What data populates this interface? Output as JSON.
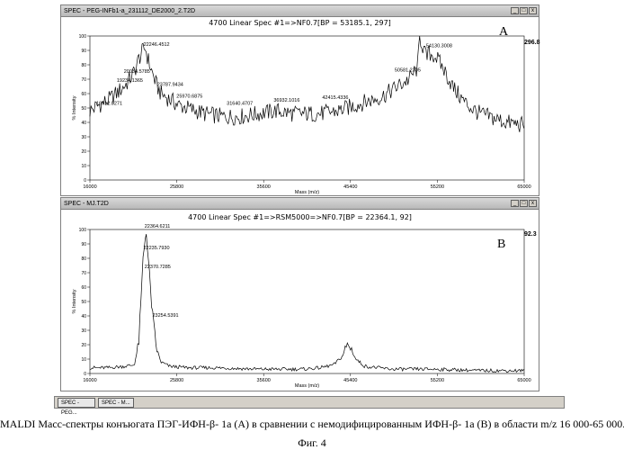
{
  "windowA": {
    "title": "SPEC - PEG-INFb1-a_231112_DE2000_2.T2D",
    "spec_title": "4700 Linear Spec #1=>NF0.7[BP = 53185.1, 297]",
    "letter": "A",
    "bp_value": "296.8"
  },
  "windowB": {
    "title": "SPEC - MJ.T2D",
    "spec_title": "4700 Linear Spec #1=>RSM5000=>NF0.7[BP = 22364.1, 92]",
    "letter": "B",
    "bp_value": "92.3"
  },
  "window_buttons": [
    "_",
    "□",
    "x"
  ],
  "taskbar": {
    "tabs": [
      "SPEC - PEG...",
      "SPEC - M..."
    ]
  },
  "caption": "MALDI Масс-спектры конъюгата ПЭГ-ИФН-β- 1а (А) в сравнении с немодифицированным ИФН-β- 1а (В) в области m/z 16 000-65 000.",
  "figure_label": "Фиг. 4",
  "chart_data": [
    {
      "type": "line",
      "panel": "A",
      "xlabel": "Mass (m/z)",
      "ylabel": "% Intensity",
      "xlim": [
        16000,
        65000
      ],
      "ylim": [
        0,
        100
      ],
      "xticks": [
        16000,
        25800,
        35600,
        45400,
        55200,
        65000
      ],
      "yticks": [
        0,
        10,
        20,
        30,
        40,
        50,
        60,
        70,
        80,
        90,
        100
      ],
      "x": [
        16000,
        17000,
        18000,
        19000,
        20000,
        20500,
        21000,
        21500,
        22000,
        22246,
        22500,
        23000,
        23500,
        24000,
        25000,
        26000,
        27000,
        28000,
        29000,
        30000,
        31000,
        32000,
        33000,
        34000,
        35000,
        36000,
        37000,
        38000,
        39000,
        40000,
        41000,
        42000,
        43000,
        44000,
        45000,
        46000,
        47000,
        48000,
        49000,
        50000,
        51000,
        52000,
        53000,
        53185,
        54000,
        54130,
        55000,
        56000,
        57000,
        58000,
        59000,
        60000,
        61000,
        62000,
        63000,
        64000,
        65000
      ],
      "y": [
        48,
        52,
        55,
        60,
        66,
        70,
        75,
        84,
        90,
        92,
        85,
        75,
        66,
        60,
        56,
        52,
        50,
        48,
        46,
        45,
        44,
        44,
        44,
        45,
        46,
        47,
        48,
        47,
        46,
        46,
        46,
        46,
        47,
        48,
        50,
        52,
        54,
        56,
        58,
        62,
        66,
        70,
        78,
        100,
        84,
        88,
        86,
        76,
        64,
        56,
        50,
        46,
        44,
        42,
        40,
        39,
        38
      ],
      "annotations": [
        {
          "label": "16912.0271",
          "x": 16912,
          "y": 51
        },
        {
          "label": "19234.1365",
          "x": 19234,
          "y": 67
        },
        {
          "label": "20034.5785",
          "x": 20034,
          "y": 73
        },
        {
          "label": "22246.4512",
          "x": 22246,
          "y": 92
        },
        {
          "label": "23787.9434",
          "x": 23787,
          "y": 64
        },
        {
          "label": "25970.6875",
          "x": 25970,
          "y": 56
        },
        {
          "label": "31640.4707",
          "x": 31640,
          "y": 51
        },
        {
          "label": "36932.1016",
          "x": 36932,
          "y": 53
        },
        {
          "label": "42415.4336",
          "x": 42415,
          "y": 55
        },
        {
          "label": "50581.2305",
          "x": 50581,
          "y": 74
        },
        {
          "label": "54130.3008",
          "x": 54130,
          "y": 91
        }
      ]
    },
    {
      "type": "line",
      "panel": "B",
      "xlabel": "Mass (m/z)",
      "ylabel": "% Intensity",
      "xlim": [
        16000,
        65000
      ],
      "ylim": [
        0,
        100
      ],
      "xticks": [
        16000,
        25800,
        35600,
        45400,
        55200,
        65000
      ],
      "yticks": [
        0,
        10,
        20,
        30,
        40,
        50,
        60,
        70,
        80,
        90,
        100
      ],
      "x": [
        16000,
        18000,
        20000,
        21000,
        21500,
        21800,
        22000,
        22200,
        22364,
        22500,
        22700,
        23000,
        23254,
        23500,
        24000,
        25000,
        27000,
        30000,
        35000,
        40000,
        42000,
        43500,
        44500,
        45000,
        45400,
        46000,
        47000,
        50000,
        55000,
        60000,
        65000
      ],
      "y": [
        4,
        4,
        5,
        6,
        20,
        55,
        80,
        92,
        100,
        85,
        70,
        45,
        30,
        18,
        8,
        5,
        4,
        4,
        3,
        3,
        4,
        6,
        12,
        20,
        18,
        10,
        5,
        3,
        3,
        2,
        2
      ],
      "annotations": [
        {
          "label": "22364.6211",
          "x": 22364,
          "y": 100
        },
        {
          "label": "22235.7930",
          "x": 22235,
          "y": 85
        },
        {
          "label": "22370.7285",
          "x": 22370,
          "y": 72
        },
        {
          "label": "23254.5391",
          "x": 23254,
          "y": 38
        }
      ]
    }
  ]
}
